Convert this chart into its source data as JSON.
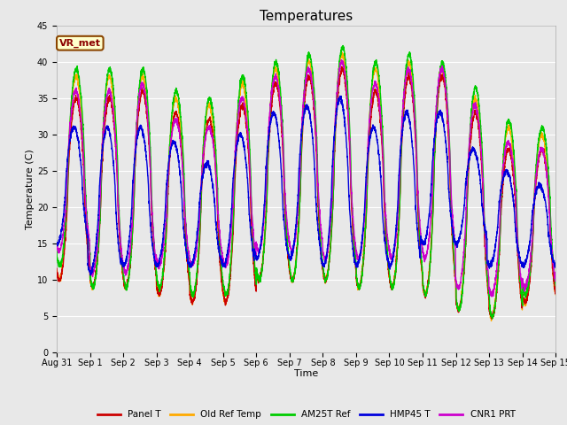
{
  "title": "Temperatures",
  "xlabel": "Time",
  "ylabel": "Temperature (C)",
  "annotation": "VR_met",
  "ylim": [
    0,
    45
  ],
  "yticks": [
    0,
    5,
    10,
    15,
    20,
    25,
    30,
    35,
    40,
    45
  ],
  "series": {
    "Panel T": {
      "color": "#cc0000",
      "lw": 1.0
    },
    "Old Ref Temp": {
      "color": "#ffaa00",
      "lw": 1.0
    },
    "AM25T Ref": {
      "color": "#00cc00",
      "lw": 1.0
    },
    "HMP45 T": {
      "color": "#0000dd",
      "lw": 1.0
    },
    "CNR1 PRT": {
      "color": "#cc00cc",
      "lw": 1.0
    }
  },
  "bg_color": "#e8e8e8",
  "grid_color": "#ffffff",
  "fig_bg": "#e8e8e8",
  "title_fontsize": 11
}
